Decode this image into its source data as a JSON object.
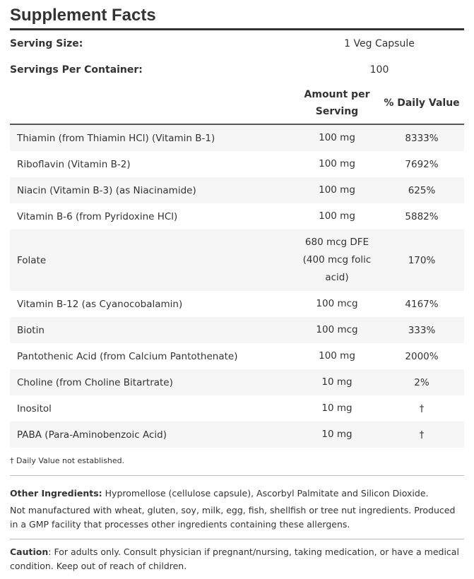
{
  "header": {
    "title": "Supplement Facts"
  },
  "serving": [
    {
      "label": "Serving Size:",
      "value": "1 Veg Capsule"
    },
    {
      "label": "Servings Per Container:",
      "value": "100"
    }
  ],
  "table": {
    "columns": [
      "Amount per Serving",
      "% Daily Value"
    ],
    "rows": [
      [
        "Thiamin (from Thiamin HCl) (Vitamin B-1)",
        "100 mg",
        "8333%"
      ],
      [
        "Riboflavin (Vitamin B-2)",
        "100 mg",
        "7692%"
      ],
      [
        "Niacin (Vitamin B-3) (as Niacinamide)",
        "100 mg",
        "625%"
      ],
      [
        "Vitamin B-6 (from Pyridoxine HCl)",
        "100 mg",
        "5882%"
      ],
      [
        "Folate",
        "680 mcg DFE (400 mcg folic acid)",
        "170%"
      ],
      [
        "Vitamin B-12 (as Cyanocobalamin)",
        "100 mcg",
        "4167%"
      ],
      [
        "Biotin",
        "100 mcg",
        "333%"
      ],
      [
        "Pantothenic Acid (from Calcium Pantothenate)",
        "100 mg",
        "2000%"
      ],
      [
        "Choline (from Choline Bitartrate)",
        "10 mg",
        "2%"
      ],
      [
        "Inositol",
        "10 mg",
        "†"
      ],
      [
        "PABA (Para-Aminobenzoic Acid)",
        "10 mg",
        "†"
      ]
    ],
    "footnote": "† Daily Value not established."
  },
  "other_ingredients": {
    "label": "Other Ingredients:",
    "text": "Hypromellose (cellulose capsule), Ascorbyl Palmitate and Silicon Dioxide."
  },
  "allergens": "Not manufactured with wheat, gluten, soy, milk, egg, fish, shellfish or tree nut ingredients. Produced in a GMP facility that processes other ingredients containing these allergens.",
  "caution": {
    "label": "Caution",
    "text": ": For adults only. Consult physician if pregnant/nursing, taking medication, or have a medical condition. Keep out of reach of children."
  }
}
